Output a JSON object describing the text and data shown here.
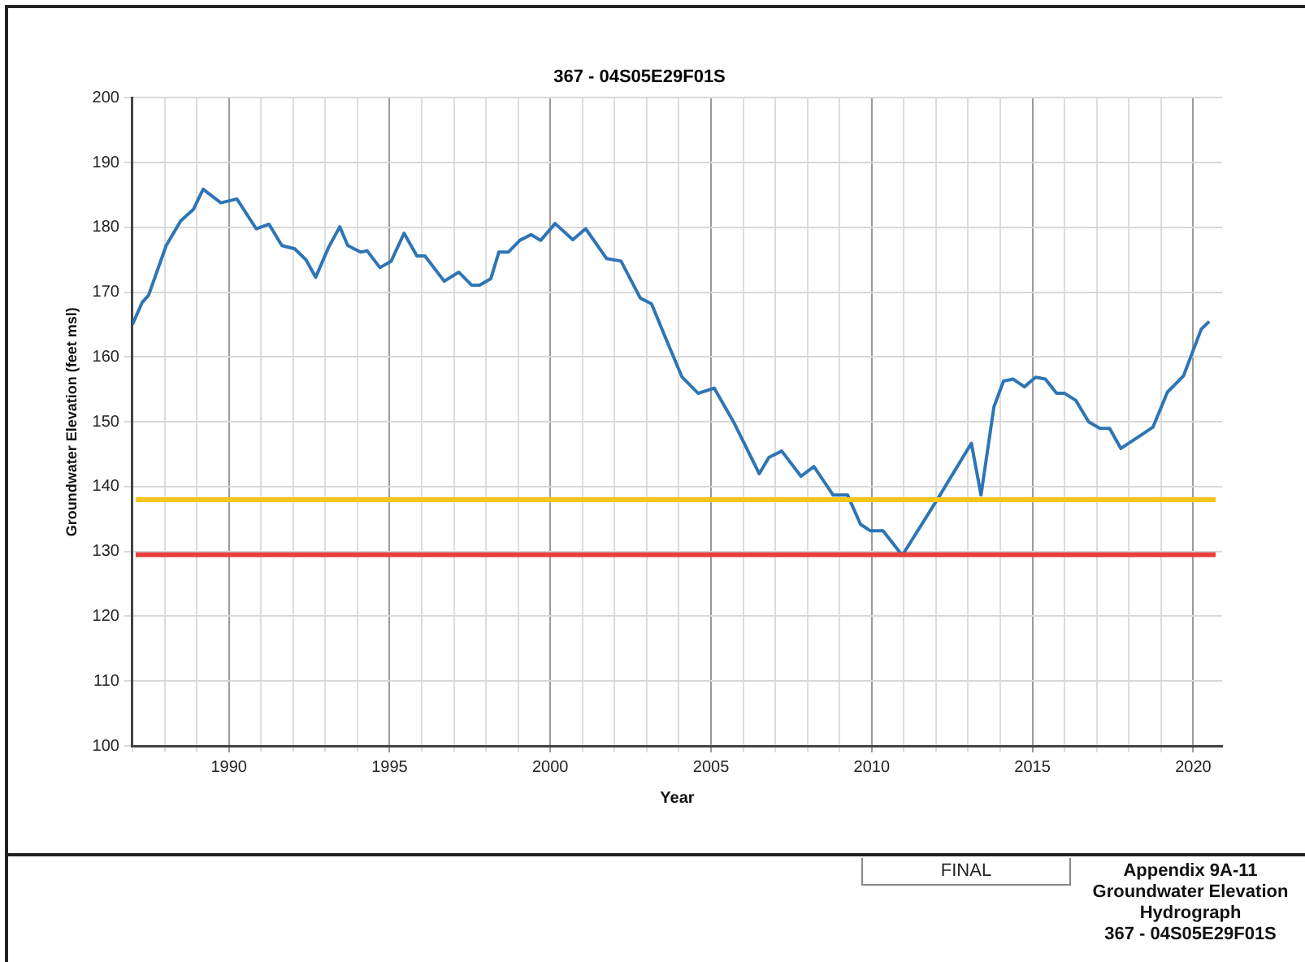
{
  "chart_data": {
    "type": "line",
    "title": "367 - 04S05E29F01S",
    "xlabel": "Year",
    "ylabel": "Groundwater Elevation (feet msl)",
    "annotations": [
      "FINAL",
      "Appendix 9A-11\nGroundwater Elevation\nHydrograph\n367 - 04S05E29F01S"
    ],
    "series": [
      {
        "color": "#2e75b6",
        "x": [
          1987.0,
          1987.3,
          1987.5,
          1988.05,
          1988.5,
          1988.9,
          1989.2,
          1989.75,
          1990.25,
          1990.85,
          1991.25,
          1991.65,
          1992.05,
          1992.4,
          1992.7,
          1993.1,
          1993.45,
          1993.7,
          1994.1,
          1994.3,
          1994.7,
          1995.05,
          1995.45,
          1995.85,
          1996.1,
          1996.7,
          1997.15,
          1997.55,
          1997.8,
          1998.15,
          1998.4,
          1998.7,
          1999.05,
          1999.4,
          1999.7,
          2000.15,
          2000.7,
          2001.1,
          2001.75,
          2002.2,
          2002.8,
          2003.15,
          2003.65,
          2004.1,
          2004.6,
          2005.1,
          2005.7,
          2006.5,
          2006.8,
          2007.2,
          2007.8,
          2008.2,
          2008.8,
          2009.25,
          2009.65,
          2009.95,
          2010.35,
          2010.95,
          2012.05,
          2013.1,
          2013.4,
          2013.8,
          2014.1,
          2014.4,
          2014.75,
          2015.1,
          2015.4,
          2015.75,
          2016.0,
          2016.35,
          2016.75,
          2017.1,
          2017.4,
          2017.75,
          2018.45,
          2018.75,
          2019.2,
          2019.7,
          2020.25,
          2020.5
        ],
        "values": [
          165,
          168.4,
          169.5,
          177.2,
          181,
          182.8,
          185.9,
          183.8,
          184.4,
          179.8,
          180.5,
          177.2,
          176.7,
          175,
          172.3,
          176.9,
          180.1,
          177.2,
          176.2,
          176.4,
          173.8,
          174.8,
          179.1,
          175.6,
          175.6,
          171.7,
          173.1,
          171.1,
          171.1,
          172.1,
          176.2,
          176.2,
          178,
          178.9,
          178,
          180.6,
          178.1,
          179.8,
          175.2,
          174.8,
          169.1,
          168.2,
          162.2,
          156.9,
          154.4,
          155.2,
          150,
          142,
          144.5,
          145.5,
          141.6,
          143.1,
          138.7,
          138.7,
          134.2,
          133.2,
          133.2,
          129.4,
          138.1,
          146.7,
          138.7,
          152.3,
          156.3,
          156.6,
          155.4,
          156.9,
          156.6,
          154.4,
          154.4,
          153.3,
          150,
          149,
          149,
          145.9,
          148.2,
          149.2,
          154.6,
          157.1,
          164.3,
          165.5
        ]
      }
    ],
    "ref_lines": [
      {
        "axis": "y",
        "value": 138,
        "color": "#f5c518"
      },
      {
        "axis": "y",
        "value": 129.5,
        "color": "#e8413c"
      }
    ],
    "xlim": [
      1987,
      2020.9
    ],
    "xticks": [
      {
        "value": 1987,
        "label": null
      },
      {
        "value": 1988,
        "label": null
      },
      {
        "value": 1989,
        "label": null
      },
      1990,
      {
        "value": 1991,
        "label": null
      },
      {
        "value": 1992,
        "label": null
      },
      {
        "value": 1993,
        "label": null
      },
      {
        "value": 1994,
        "label": null
      },
      1995,
      {
        "value": 1996,
        "label": null
      },
      {
        "value": 1997,
        "label": null
      },
      {
        "value": 1998,
        "label": null
      },
      {
        "value": 1999,
        "label": null
      },
      2000,
      {
        "value": 2001,
        "label": null
      },
      {
        "value": 2002,
        "label": null
      },
      {
        "value": 2003,
        "label": null
      },
      {
        "value": 2004,
        "label": null
      },
      2005,
      {
        "value": 2006,
        "label": null
      },
      {
        "value": 2007,
        "label": null
      },
      {
        "value": 2008,
        "label": null
      },
      {
        "value": 2009,
        "label": null
      },
      2010,
      {
        "value": 2011,
        "label": null
      },
      {
        "value": 2012,
        "label": null
      },
      {
        "value": 2013,
        "label": null
      },
      {
        "value": 2014,
        "label": null
      },
      2015,
      {
        "value": 2016,
        "label": null
      },
      {
        "value": 2017,
        "label": null
      },
      {
        "value": 2018,
        "label": null
      },
      {
        "value": 2019,
        "label": null
      },
      2020
    ],
    "ylim": [
      100,
      200
    ],
    "yticks": [
      100,
      110,
      120,
      130,
      140,
      150,
      160,
      170,
      180,
      190,
      200
    ],
    "grid": true,
    "legend": false,
    "marker": "none",
    "line_style": "solid"
  }
}
